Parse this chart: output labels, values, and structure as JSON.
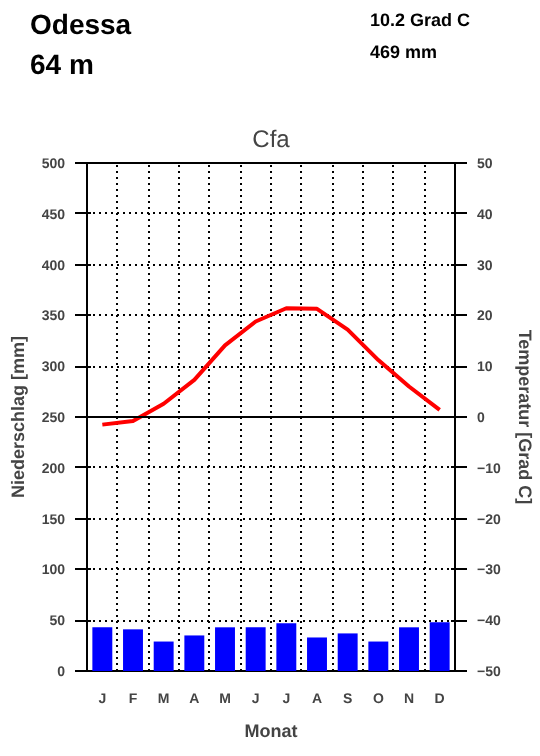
{
  "chart_data": {
    "type": "bar",
    "title": "Cfa",
    "xlabel": "Monat",
    "ylabel": "Niederschlag [mm]",
    "y2label": "Temperatur [Grad C]",
    "annotations": [
      "Odessa",
      "64 m",
      "10.2 Grad C",
      "469 mm"
    ],
    "categories": [
      "J",
      "F",
      "M",
      "A",
      "M",
      "J",
      "J",
      "A",
      "S",
      "O",
      "N",
      "D"
    ],
    "series": [
      {
        "color": "#0000ff",
        "values": [
          43,
          41,
          29,
          35,
          43,
          43,
          47,
          33,
          37,
          29,
          43,
          48
        ]
      },
      {
        "type": "line",
        "axis": "y2",
        "color": "#ff0000",
        "values": [
          -1.5,
          -0.8,
          2.6,
          7.3,
          14.1,
          18.8,
          21.4,
          21.3,
          17.2,
          11.2,
          6.0,
          1.4
        ]
      }
    ],
    "ylim": [
      0,
      500
    ],
    "yticks": [
      0,
      50,
      100,
      150,
      200,
      250,
      300,
      350,
      400,
      450,
      500
    ],
    "y2lim": [
      -50,
      50
    ],
    "y2ticks": [
      -50,
      -40,
      -30,
      -20,
      -10,
      0,
      10,
      20,
      30,
      40,
      50
    ],
    "ref_lines": [
      {
        "axis": "y2",
        "value": 0,
        "color": "#000000"
      }
    ],
    "grid": true
  }
}
